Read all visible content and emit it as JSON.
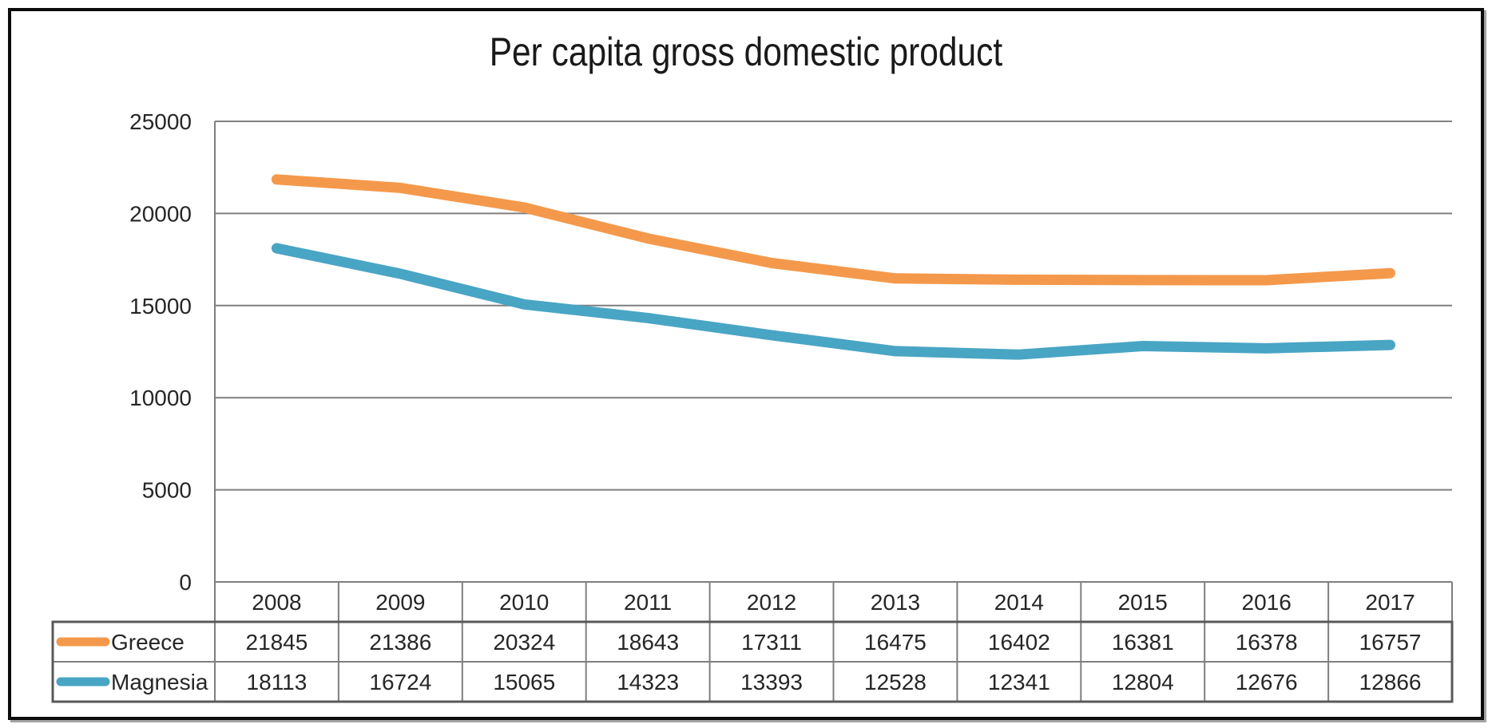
{
  "chart_data": {
    "type": "line",
    "title": "Per capita gross domestic product",
    "categories": [
      "2008",
      "2009",
      "2010",
      "2011",
      "2012",
      "2013",
      "2014",
      "2015",
      "2016",
      "2017"
    ],
    "series": [
      {
        "name": "Greece",
        "color": "#F4994B",
        "values": [
          21845,
          21386,
          20324,
          18643,
          17311,
          16475,
          16402,
          16381,
          16378,
          16757
        ]
      },
      {
        "name": "Magnesia",
        "color": "#49A5C4",
        "values": [
          18113,
          16724,
          15065,
          14323,
          13393,
          12528,
          12341,
          12804,
          12676,
          12866
        ]
      }
    ],
    "ylim": [
      0,
      25000
    ],
    "yticks": [
      25000,
      20000,
      15000,
      10000,
      5000,
      0
    ],
    "ytick_labels": [
      "25000",
      "20000",
      "15000",
      "10000",
      "5000",
      "0"
    ],
    "grid": true,
    "legend_position": "table-left",
    "show_data_table": true,
    "colors": {
      "gridline": "#7f7f7f",
      "table_border": "#7f7f7f",
      "table_outline": "#595959",
      "text": "#262626",
      "frame": "#0b0b0b"
    }
  }
}
